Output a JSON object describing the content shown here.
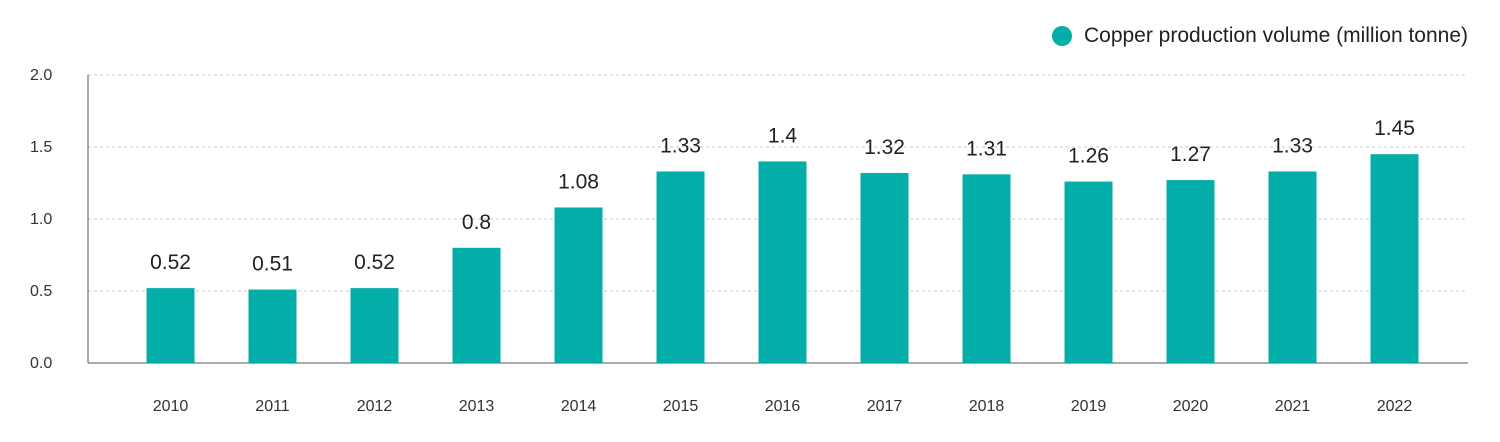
{
  "colors": {
    "bar": "#03ADA8",
    "grid": "#c8c8c8",
    "axis": "#555555"
  },
  "legend": {
    "label": "Copper production volume (million tonne)"
  },
  "chart_data": {
    "type": "bar",
    "categories": [
      "2010",
      "2011",
      "2012",
      "2013",
      "2014",
      "2015",
      "2016",
      "2017",
      "2018",
      "2019",
      "2020",
      "2021",
      "2022"
    ],
    "series": [
      {
        "name": "Copper production volume (million tonne)",
        "values": [
          0.52,
          0.51,
          0.52,
          0.8,
          1.08,
          1.33,
          1.4,
          1.32,
          1.31,
          1.26,
          1.27,
          1.33,
          1.45
        ],
        "labels": [
          "0.52",
          "0.51",
          "0.52",
          "0.8",
          "1.08",
          "1.33",
          "1.4",
          "1.32",
          "1.31",
          "1.26",
          "1.27",
          "1.33",
          "1.45"
        ]
      }
    ],
    "ylim": [
      0,
      2.0
    ],
    "yticks": [
      "0.0",
      "0.5",
      "1.0",
      "1.5",
      "2.0"
    ],
    "grid": true,
    "legend_position": "top-right"
  }
}
